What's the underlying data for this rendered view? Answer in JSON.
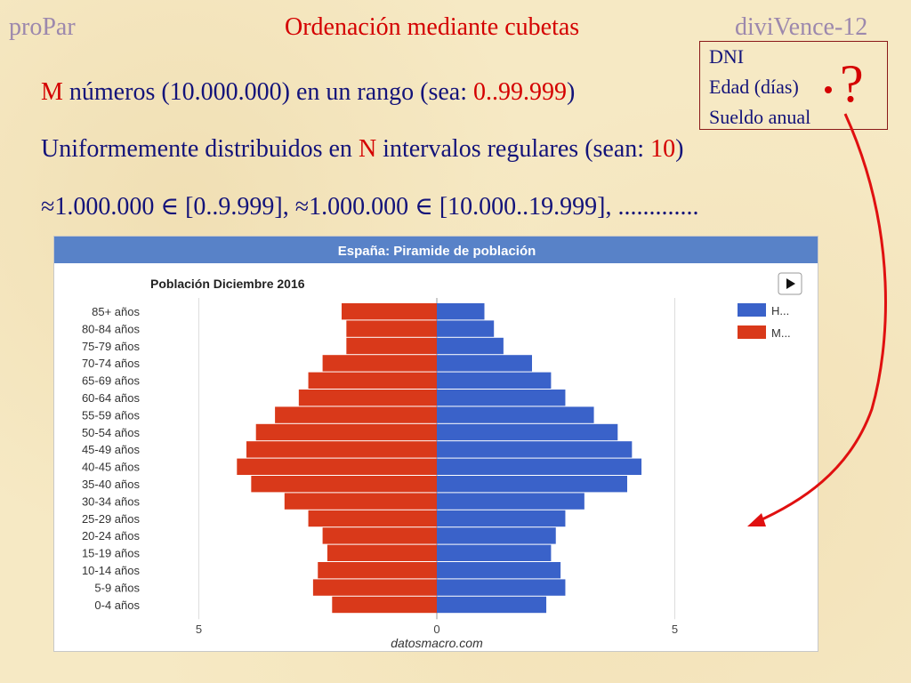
{
  "header": {
    "left": "proPar",
    "center": "Ordenación mediante cubetas",
    "right": "diviVence-12"
  },
  "lines": {
    "line1_a": "M",
    "line1_b": " números (10.000.000) en un rango (sea: ",
    "line1_c": "0..99.999",
    "line1_d": ")",
    "line2_a": "Uniformemente distribuidos en ",
    "line2_b": "N",
    "line2_c": " intervalos regulares (sean: ",
    "line2_d": "10",
    "line2_e": ")",
    "line3": "≈1.000.000 ∈ [0..9.999], ≈1.000.000 ∈ [10.000..19.999], ............."
  },
  "box": {
    "items": [
      "DNI",
      "Edad (días)",
      "Sueldo anual"
    ]
  },
  "question_mark": "?",
  "colors": {
    "accent_red": "#d40000",
    "text_blue": "#13137a",
    "header_purple": "#9c88ad",
    "hombres": "#3a62c9",
    "mujeres": "#d9391a",
    "chart_banner": "#5882c8"
  },
  "chart_data": {
    "type": "bar",
    "title": "España: Piramide de población",
    "subtitle": "Población Diciembre 2016",
    "source": "datosmacro.com",
    "categories": [
      "85+ años",
      "80-84 años",
      "75-79 años",
      "70-74 años",
      "65-69 años",
      "60-64 años",
      "55-59 años",
      "50-54 años",
      "45-49 años",
      "40-45 años",
      "35-40 años",
      "30-34 años",
      "25-29 años",
      "20-24 años",
      "15-19 años",
      "10-14 años",
      "5-9 años",
      "0-4 años"
    ],
    "series": [
      {
        "name": "H...",
        "values": [
          1.0,
          1.2,
          1.4,
          2.0,
          2.4,
          2.7,
          3.3,
          3.8,
          4.1,
          4.3,
          4.0,
          3.1,
          2.7,
          2.5,
          2.4,
          2.6,
          2.7,
          2.3
        ]
      },
      {
        "name": "M...",
        "values": [
          2.0,
          1.9,
          1.9,
          2.4,
          2.7,
          2.9,
          3.4,
          3.8,
          4.0,
          4.2,
          3.9,
          3.2,
          2.7,
          2.4,
          2.3,
          2.5,
          2.6,
          2.2
        ]
      }
    ],
    "x_ticks": [
      "5",
      "0",
      "5"
    ],
    "xlim": [
      -5,
      5
    ],
    "legend_position": "top-right",
    "grid": true
  }
}
